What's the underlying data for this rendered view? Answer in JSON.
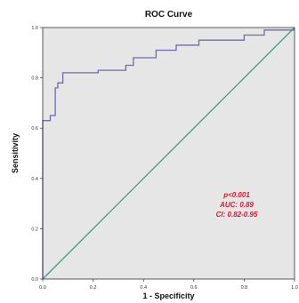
{
  "chart_data": {
    "type": "line",
    "title": "ROC Curve",
    "xlabel": "1 - Specificity",
    "ylabel": "Sensitivity",
    "xlim": [
      0,
      1
    ],
    "ylim": [
      0,
      1
    ],
    "x_ticks": [
      "0.0",
      "0.2",
      "0.4",
      "0.6",
      "0.8",
      "1.0"
    ],
    "y_ticks": [
      "0.0",
      "0.2",
      "0.4",
      "0.6",
      "0.8",
      "1.0"
    ],
    "grid": false,
    "legend": "none",
    "background_color": "#e6e6e6",
    "series": [
      {
        "type": "step",
        "color": "#6b6bb0",
        "x": [
          0.0,
          0.0,
          0.03,
          0.03,
          0.05,
          0.05,
          0.06,
          0.06,
          0.08,
          0.08,
          0.22,
          0.22,
          0.33,
          0.33,
          0.36,
          0.36,
          0.45,
          0.45,
          0.53,
          0.53,
          0.62,
          0.62,
          0.8,
          0.8,
          0.88,
          0.88,
          1.0
        ],
        "y": [
          0.0,
          0.63,
          0.63,
          0.65,
          0.65,
          0.76,
          0.76,
          0.78,
          0.78,
          0.82,
          0.82,
          0.83,
          0.83,
          0.85,
          0.85,
          0.88,
          0.88,
          0.91,
          0.91,
          0.93,
          0.93,
          0.95,
          0.95,
          0.97,
          0.97,
          0.99,
          0.99
        ]
      },
      {
        "type": "reference",
        "color": "#3a9e82",
        "x": [
          0,
          1
        ],
        "y": [
          0,
          1
        ]
      }
    ],
    "annotations": [
      "p<0.001",
      "AUC: 0.89",
      "CI: 0.82-0.95"
    ]
  }
}
